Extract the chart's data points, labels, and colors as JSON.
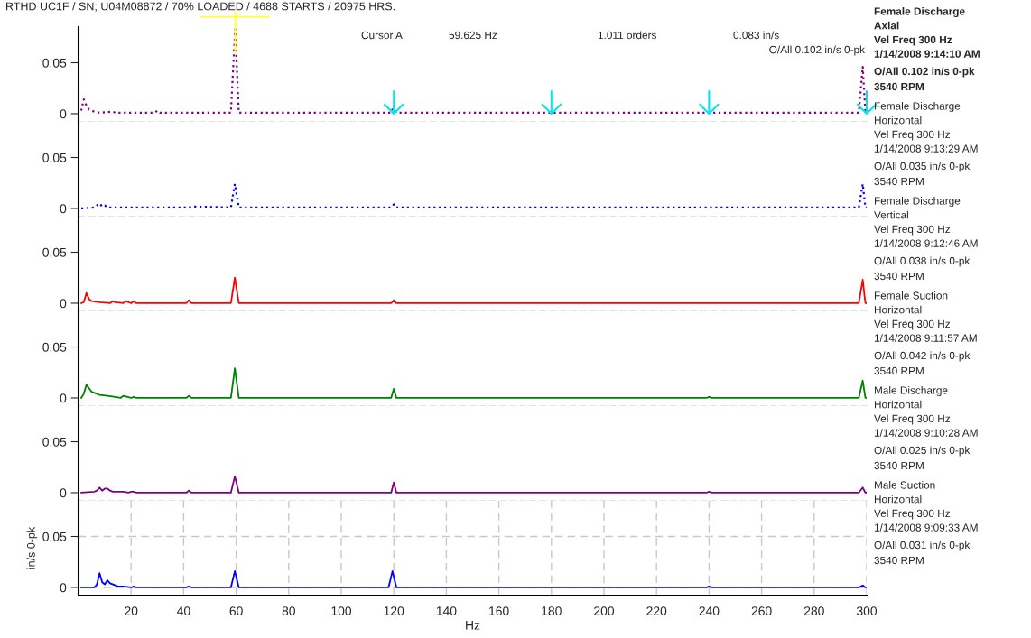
{
  "chart_data": [
    {
      "type": "line",
      "title": "RTHD UC1F / SN; U04M08872 / 70% LOADED / 4688 STARTS / 20975 HRS.",
      "xlim": [
        0,
        300
      ],
      "ylim": [
        -0.008,
        0.085
      ],
      "yticks": [
        0,
        0.05
      ],
      "tick_labels": "y",
      "grid": false,
      "legend": false,
      "line_style": "dotted",
      "series": [
        {
          "name": "Female Discharge\nAxial\nVel Freq 300 Hz\n1/14/2008 9:14:10 AM",
          "color": "#800080",
          "x": [
            1,
            2,
            3,
            4,
            6,
            8,
            13,
            14,
            20,
            29,
            30,
            31,
            58,
            59.625,
            61,
            119,
            120,
            121,
            297,
            298.5,
            299.5,
            300
          ],
          "values": [
            0.003,
            0.014,
            0.008,
            0.004,
            0.002,
            0.001,
            0.002,
            0.001,
            0.001,
            0.001,
            0.003,
            0.001,
            0.001,
            0.083,
            0.001,
            0.001,
            0.008,
            0.001,
            0.001,
            0.046,
            0.001,
            0.001
          ]
        }
      ],
      "ref_lines": [
        {
          "axis": "x",
          "value": 59.625,
          "color": "#ffff33",
          "line_style": "solid"
        },
        {
          "axis": "x",
          "value": 120,
          "color": "#00e5ee"
        },
        {
          "axis": "x",
          "value": 180,
          "color": "#00e5ee"
        },
        {
          "axis": "x",
          "value": 240,
          "color": "#00e5ee"
        },
        {
          "axis": "x",
          "value": 300,
          "color": "#00e5ee"
        }
      ],
      "annotations": [
        "Cursor A:",
        "59.625 Hz",
        "1.011 orders",
        "0.083 in/s",
        "O/All 0.102 in/s 0-pk",
        "O/All 0.102 in/s 0-pk",
        "3540 RPM"
      ]
    },
    {
      "type": "line",
      "xlim": [
        0,
        300
      ],
      "ylim": [
        -0.008,
        0.085
      ],
      "yticks": [
        0,
        0.05
      ],
      "tick_labels": "y",
      "grid": false,
      "legend": false,
      "line_style": "dotted",
      "series": [
        {
          "name": "Female Discharge\nHorizontal\nVel Freq 300 Hz\n1/14/2008 9:13:29 AM",
          "color": "#0000ff",
          "x": [
            1,
            6,
            8,
            9,
            10,
            11,
            13,
            20,
            42,
            43,
            58,
            59.5,
            61,
            119,
            120,
            121,
            297,
            298.5,
            299.5,
            300
          ],
          "values": [
            0,
            0.001,
            0.005,
            0.002,
            0.003,
            0.001,
            0.001,
            0.001,
            0.001,
            0.002,
            0.001,
            0.024,
            0.001,
            0.001,
            0.004,
            0.001,
            0.001,
            0.024,
            0.001,
            0.001
          ]
        }
      ],
      "annotations": [
        "O/All 0.035 in/s 0-pk",
        "3540 RPM"
      ]
    },
    {
      "type": "line",
      "xlim": [
        0,
        300
      ],
      "ylim": [
        -0.008,
        0.085
      ],
      "yticks": [
        0,
        0.05
      ],
      "tick_labels": "y",
      "grid": false,
      "legend": false,
      "line_style": "solid",
      "series": [
        {
          "name": "Female Discharge\nVertical\nVel Freq 300 Hz\n1/14/2008 9:12:46 AM",
          "color": "#ff0000",
          "x": [
            1,
            2,
            3,
            4,
            5,
            8,
            12,
            13,
            14,
            17,
            18,
            20,
            21,
            22,
            41,
            42,
            43,
            58,
            59.5,
            61,
            119,
            120,
            121,
            297,
            298.5,
            299.5,
            300
          ],
          "values": [
            0,
            0.001,
            0.01,
            0.004,
            0.002,
            0.001,
            0,
            0.002,
            0.001,
            0,
            0.002,
            0,
            0.002,
            0,
            0,
            0.003,
            0,
            0,
            0.025,
            0,
            0,
            0.003,
            0,
            0,
            0.023,
            0,
            0
          ]
        }
      ],
      "annotations": [
        "O/All 0.038 in/s 0-pk",
        "3540 RPM"
      ]
    },
    {
      "type": "line",
      "xlim": [
        0,
        300
      ],
      "ylim": [
        -0.008,
        0.085
      ],
      "yticks": [
        0,
        0.05
      ],
      "tick_labels": "y",
      "grid": false,
      "legend": false,
      "line_style": "solid",
      "series": [
        {
          "name": "Female Suction\nHorizontal\nVel Freq 300 Hz\n1/14/2008 9:11:57 AM",
          "color": "#008000",
          "x": [
            1,
            2,
            3,
            5,
            8,
            11,
            14,
            16,
            17,
            20,
            21,
            22,
            41,
            42,
            43,
            58,
            59.5,
            61,
            119,
            120,
            121,
            239,
            240,
            241,
            297,
            298.5,
            299.5,
            300
          ],
          "values": [
            0,
            0.004,
            0.013,
            0.006,
            0.003,
            0.002,
            0.001,
            0,
            0.002,
            0,
            0.001,
            0,
            0,
            0.002,
            0,
            0,
            0.029,
            0,
            0,
            0.009,
            0,
            0,
            0.001,
            0,
            0,
            0.017,
            0,
            0
          ]
        }
      ],
      "annotations": [
        "O/All 0.042 in/s 0-pk",
        "3540 RPM"
      ]
    },
    {
      "type": "line",
      "xlim": [
        0,
        300
      ],
      "ylim": [
        -0.008,
        0.085
      ],
      "yticks": [
        0,
        0.05
      ],
      "tick_labels": "y",
      "grid": false,
      "legend": false,
      "line_style": "solid",
      "series": [
        {
          "name": "Male Discharge\nHorizontal\nVel Freq 300 Hz\n1/14/2008 9:10:28 AM",
          "color": "#800080",
          "x": [
            1,
            6,
            7,
            8,
            9,
            10,
            11,
            12,
            13,
            15,
            17,
            19,
            20,
            21,
            22,
            41,
            42,
            43,
            58,
            59.5,
            61,
            119,
            120,
            121,
            239,
            240,
            241,
            297,
            298.5,
            299.5,
            300
          ],
          "values": [
            0,
            0.001,
            0.002,
            0.005,
            0.002,
            0.004,
            0.004,
            0.002,
            0.001,
            0.001,
            0.001,
            0,
            0.001,
            0.001,
            0,
            0,
            0.002,
            0,
            0,
            0.016,
            0,
            0,
            0.01,
            0,
            0,
            0.001,
            0,
            0,
            0.005,
            0,
            0
          ]
        }
      ],
      "annotations": [
        "O/All 0.025 in/s 0-pk",
        "3540 RPM"
      ]
    },
    {
      "type": "line",
      "xlim": [
        0,
        300
      ],
      "ylim": [
        -0.008,
        0.085
      ],
      "yticks": [
        0,
        0.05
      ],
      "xticks": [
        20,
        40,
        60,
        80,
        100,
        120,
        140,
        160,
        180,
        200,
        220,
        240,
        260,
        280,
        300
      ],
      "xlabel": "Hz",
      "ylabel": "in/s 0-pk",
      "grid": true,
      "legend": false,
      "line_style": "solid",
      "series": [
        {
          "name": "Male Suction\nHorizontal\nVel Freq 300 Hz\n1/14/2008 9:09:33 AM",
          "color": "#0000ff",
          "x": [
            1,
            6,
            7,
            8,
            9,
            10,
            11,
            12,
            14,
            15,
            17,
            20,
            21,
            22,
            41,
            42,
            43,
            58,
            59.5,
            61,
            118,
            119.5,
            121,
            239,
            240,
            241,
            297,
            298.5,
            299.5,
            300
          ],
          "values": [
            0,
            0,
            0.003,
            0.014,
            0.005,
            0.003,
            0.007,
            0.004,
            0.002,
            0.001,
            0.001,
            0,
            0.001,
            0,
            0,
            0.001,
            0,
            0,
            0.016,
            0,
            0,
            0.016,
            0,
            0,
            0.001,
            0,
            0,
            0.002,
            0,
            0
          ]
        }
      ],
      "annotations": [
        "O/All 0.031 in/s 0-pk",
        "3540 RPM"
      ]
    }
  ]
}
